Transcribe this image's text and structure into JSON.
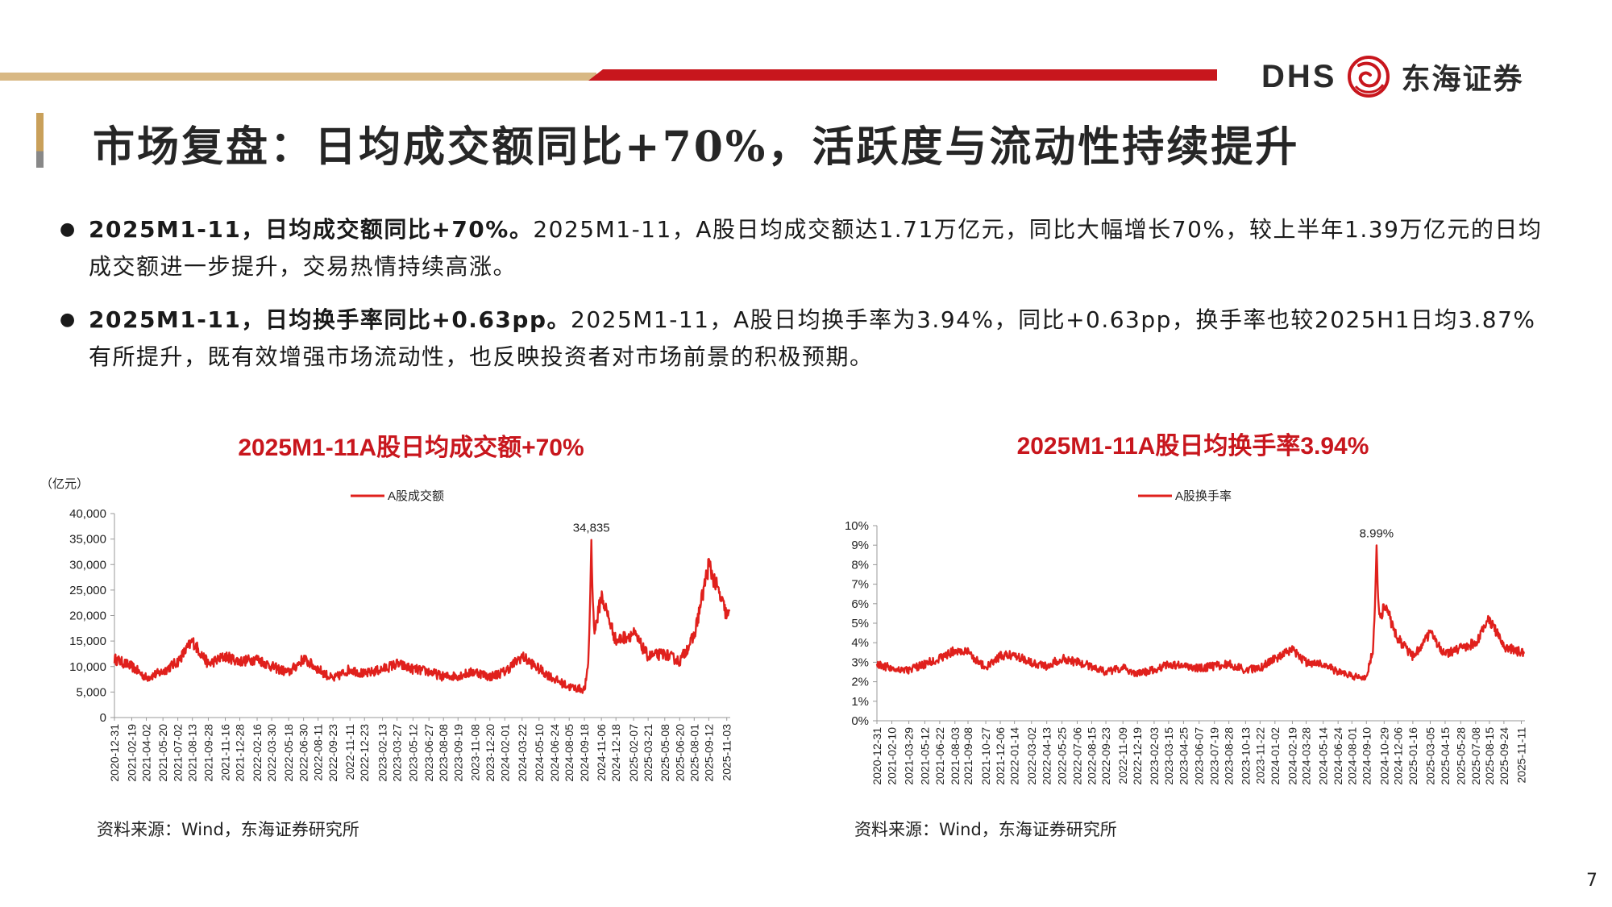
{
  "brand": {
    "latin": "DHS",
    "cn": "东海证券"
  },
  "page_title": "市场复盘：日均成交额同比+70%，活跃度与流动性持续提升",
  "bullets": [
    {
      "bold": "2025M1-11，日均成交额同比+70%。",
      "text": "2025M1-11，A股日均成交额达1.71万亿元，同比大幅增长70%，较上半年1.39万亿元的日均成交额进一步提升，交易热情持续高涨。"
    },
    {
      "bold": "2025M1-11，日均换手率同比+0.63pp。",
      "text": "2025M1-11，A股日均换手率为3.94%，同比+0.63pp，换手率也较2025H1日均3.87%有所提升，既有效增强市场流动性，也反映投资者对市场前景的积极预期。"
    }
  ],
  "chart_data": [
    {
      "type": "line",
      "title": "2025M1-11A股日均成交额+70%",
      "ylabel": "（亿元）",
      "ylim": [
        0,
        40000
      ],
      "yticks": [
        "0",
        "5,000",
        "10,000",
        "15,000",
        "20,000",
        "25,000",
        "30,000",
        "35,000",
        "40,000"
      ],
      "legend": "top-center",
      "annotation": "34,835",
      "series": [
        {
          "name": "A股成交额",
          "color": "#e0201c",
          "x": [
            "2020-12-31",
            "2021-02-19",
            "2021-04-02",
            "2021-05-20",
            "2021-07-02",
            "2021-08-13",
            "2021-09-28",
            "2021-11-16",
            "2021-12-28",
            "2022-02-16",
            "2022-03-30",
            "2022-05-18",
            "2022-06-30",
            "2022-08-11",
            "2022-09-23",
            "2022-11-11",
            "2022-12-23",
            "2023-02-13",
            "2023-03-27",
            "2023-05-12",
            "2023-06-27",
            "2023-08-08",
            "2023-09-19",
            "2023-11-08",
            "2023-12-20",
            "2024-02-01",
            "2024-03-22",
            "2024-05-10",
            "2024-06-24",
            "2024-08-05",
            "2024-09-18",
            "2024-11-06",
            "2024-12-18",
            "2025-02-07",
            "2025-03-21",
            "2025-05-08",
            "2025-06-20",
            "2025-08-01",
            "2025-09-12",
            "2025-11-03"
          ],
          "values": [
            11500,
            10000,
            7800,
            9000,
            11000,
            15000,
            10500,
            12000,
            11000,
            11500,
            10000,
            8800,
            11500,
            9500,
            7500,
            9500,
            8500,
            9500,
            10500,
            9500,
            9000,
            8000,
            8200,
            9000,
            8000,
            9000,
            12000,
            9500,
            7500,
            6000,
            5500,
            24000,
            15000,
            16500,
            12000,
            12500,
            11000,
            16000,
            30000,
            20000
          ]
        }
      ],
      "xticks": [
        "2020-12-31",
        "2021-02-19",
        "2021-04-02",
        "2021-05-20",
        "2021-07-02",
        "2021-08-13",
        "2021-09-28",
        "2021-11-16",
        "2021-12-28",
        "2022-02-16",
        "2022-03-30",
        "2022-05-18",
        "2022-06-30",
        "2022-08-11",
        "2022-09-23",
        "2022-11-11",
        "2022-12-23",
        "2023-02-13",
        "2023-03-27",
        "2023-05-12",
        "2023-06-27",
        "2023-08-08",
        "2023-09-19",
        "2023-11-08",
        "2023-12-20",
        "2024-02-01",
        "2024-03-22",
        "2024-05-10",
        "2024-06-24",
        "2024-08-05",
        "2024-09-18",
        "2024-11-06",
        "2024-12-18",
        "2025-02-07",
        "2025-03-21",
        "2025-05-08",
        "2025-06-20",
        "2025-08-01",
        "2025-09-12",
        "2025-11-03"
      ],
      "peak": {
        "x": "2024-10-08",
        "value": 34835
      },
      "source": "资料来源：Wind，东海证券研究所"
    },
    {
      "type": "line",
      "title": "2025M1-11A股日均换手率3.94%",
      "ylim": [
        0,
        10
      ],
      "yticks": [
        "0%",
        "1%",
        "2%",
        "3%",
        "4%",
        "5%",
        "6%",
        "7%",
        "8%",
        "9%",
        "10%"
      ],
      "legend": "top-center",
      "annotation": "8.99%",
      "series": [
        {
          "name": "A股换手率",
          "color": "#e0201c",
          "x": [
            "2020-12-31",
            "2021-02-10",
            "2021-03-29",
            "2021-05-12",
            "2021-06-22",
            "2021-08-03",
            "2021-09-08",
            "2021-10-27",
            "2021-12-06",
            "2022-01-14",
            "2022-03-02",
            "2022-04-13",
            "2022-05-25",
            "2022-07-06",
            "2022-08-15",
            "2022-09-23",
            "2022-11-09",
            "2022-12-19",
            "2023-02-03",
            "2023-03-15",
            "2023-04-25",
            "2023-06-07",
            "2023-07-19",
            "2023-08-28",
            "2023-10-13",
            "2023-11-22",
            "2024-01-02",
            "2024-02-19",
            "2024-03-28",
            "2024-05-14",
            "2024-06-24",
            "2024-08-01",
            "2024-09-10",
            "2024-10-29",
            "2024-12-06",
            "2025-01-16",
            "2025-03-05",
            "2025-04-15",
            "2025-05-28",
            "2025-07-08",
            "2025-08-15",
            "2025-09-24",
            "2025-11-11"
          ],
          "values": [
            2.9,
            2.7,
            2.6,
            2.9,
            3.2,
            3.6,
            3.5,
            2.7,
            3.3,
            3.4,
            3.0,
            2.8,
            3.2,
            3.0,
            2.8,
            2.5,
            2.7,
            2.4,
            2.6,
            2.9,
            2.8,
            2.7,
            2.8,
            2.9,
            2.6,
            2.7,
            3.2,
            3.6,
            3.0,
            2.9,
            2.5,
            2.3,
            2.2,
            6.0,
            4.2,
            3.3,
            4.5,
            3.4,
            3.7,
            4.0,
            5.2,
            3.8,
            3.5
          ]
        }
      ],
      "xticks": [
        "2020-12-31",
        "2021-02-10",
        "2021-03-29",
        "2021-05-12",
        "2021-06-22",
        "2021-08-03",
        "2021-09-08",
        "2021-10-27",
        "2021-12-06",
        "2022-01-14",
        "2022-03-02",
        "2022-04-13",
        "2022-05-25",
        "2022-07-06",
        "2022-08-15",
        "2022-09-23",
        "2022-11-09",
        "2022-12-19",
        "2023-02-03",
        "2023-03-15",
        "2023-04-25",
        "2023-06-07",
        "2023-07-19",
        "2023-08-28",
        "2023-10-13",
        "2023-11-22",
        "2024-01-02",
        "2024-02-19",
        "2024-03-28",
        "2024-05-14",
        "2024-06-24",
        "2024-08-01",
        "2024-09-10",
        "2024-10-29",
        "2024-12-06",
        "2025-01-16",
        "2025-03-05",
        "2025-04-15",
        "2025-05-28",
        "2025-07-08",
        "2025-08-15",
        "2025-09-24",
        "2025-11-11"
      ],
      "peak": {
        "x": "2024-10-08",
        "value": 8.99
      },
      "source": "资料来源：Wind，东海证券研究所"
    }
  ],
  "page_number": "7"
}
